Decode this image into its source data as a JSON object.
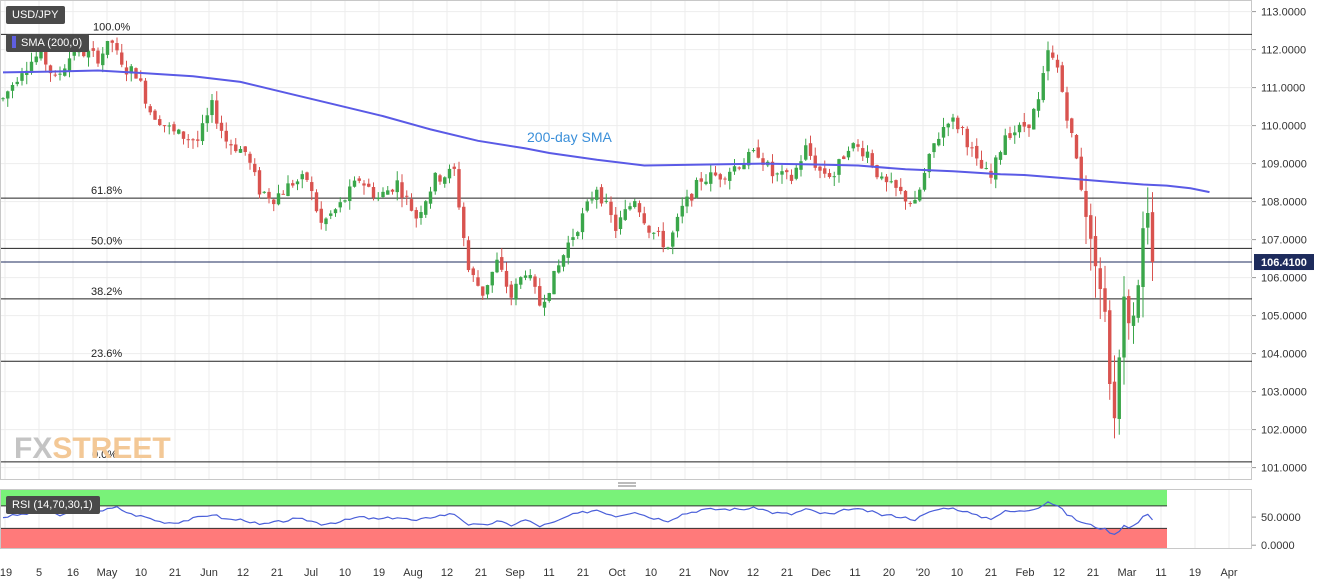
{
  "header": {
    "symbol": "USD/JPY",
    "sma_label": "SMA (200,0)",
    "rsi_label": "RSI (14,70,30,1)"
  },
  "watermark": {
    "text_fx": "FX",
    "text_street": "STREET"
  },
  "colors": {
    "bull": "#3aa64a",
    "bear": "#d9534f",
    "sma": "#5a5ae6",
    "rsi": "#4a5fd9",
    "overbought": "#79f279",
    "oversold": "#ff7a7a",
    "price_badge": "#1d2b5c"
  },
  "chart_data": [
    {
      "type": "candlestick",
      "title": "USD/JPY",
      "x_tick_labels": [
        "'19",
        "5",
        "16",
        "May",
        "10",
        "21",
        "Jun",
        "12",
        "21",
        "Jul",
        "10",
        "19",
        "Aug",
        "12",
        "21",
        "Sep",
        "11",
        "21",
        "Oct",
        "10",
        "21",
        "Nov",
        "12",
        "21",
        "Dec",
        "11",
        "20",
        "'20",
        "10",
        "21",
        "Feb",
        "12",
        "21",
        "Mar",
        "11",
        "19",
        "Apr"
      ],
      "y_tick_labels": [
        "113.0000",
        "112.0000",
        "111.0000",
        "110.0000",
        "109.0000",
        "108.0000",
        "107.0000",
        "106.0000",
        "105.0000",
        "104.0000",
        "103.0000",
        "102.0000",
        "101.0000"
      ],
      "ylim": [
        100.7,
        113.2
      ],
      "last_price": "106.4100",
      "fib_levels": [
        {
          "label": "100.0%",
          "value": 112.4
        },
        {
          "label": "61.8%",
          "value": 108.09
        },
        {
          "label": "50.0%",
          "value": 106.77
        },
        {
          "label": "38.2%",
          "value": 105.44
        },
        {
          "label": "23.6%",
          "value": 103.8
        },
        {
          "label": "0.0%",
          "value": 101.15
        }
      ],
      "sma_label": "200-day SMA",
      "sma_anchor_index": 36,
      "sma": [
        [
          0,
          111.4
        ],
        [
          10,
          111.42
        ],
        [
          20,
          111.45
        ],
        [
          30,
          111.38
        ],
        [
          40,
          111.3
        ],
        [
          50,
          111.15
        ],
        [
          60,
          110.85
        ],
        [
          70,
          110.55
        ],
        [
          80,
          110.25
        ],
        [
          90,
          109.9
        ],
        [
          100,
          109.6
        ],
        [
          110,
          109.4
        ],
        [
          115,
          109.28
        ],
        [
          125,
          109.1
        ],
        [
          135,
          108.95
        ],
        [
          150,
          108.98
        ],
        [
          160,
          109.0
        ],
        [
          170,
          108.98
        ],
        [
          180,
          108.95
        ],
        [
          190,
          108.85
        ],
        [
          200,
          108.8
        ],
        [
          210,
          108.72
        ],
        [
          215,
          108.7
        ],
        [
          225,
          108.6
        ],
        [
          235,
          108.5
        ],
        [
          240,
          108.45
        ],
        [
          245,
          108.42
        ],
        [
          250,
          108.35
        ],
        [
          254,
          108.25
        ]
      ],
      "price_anchors": [
        [
          0,
          110.7
        ],
        [
          4,
          111.5
        ],
        [
          8,
          111.9
        ],
        [
          11,
          111.2
        ],
        [
          15,
          112.0
        ],
        [
          20,
          111.8
        ],
        [
          23,
          112.2
        ],
        [
          25,
          111.5
        ],
        [
          28,
          111.4
        ],
        [
          31,
          110.4
        ],
        [
          36,
          109.8
        ],
        [
          41,
          109.6
        ],
        [
          44,
          110.5
        ],
        [
          47,
          109.6
        ],
        [
          51,
          109.3
        ],
        [
          54,
          108.3
        ],
        [
          57,
          108.1
        ],
        [
          61,
          108.5
        ],
        [
          64,
          108.6
        ],
        [
          67,
          107.4
        ],
        [
          71,
          107.9
        ],
        [
          75,
          108.6
        ],
        [
          79,
          108.1
        ],
        [
          83,
          108.5
        ],
        [
          87,
          107.6
        ],
        [
          91,
          108.6
        ],
        [
          95,
          108.8
        ],
        [
          98,
          106.2
        ],
        [
          101,
          105.6
        ],
        [
          104,
          106.4
        ],
        [
          107,
          105.5
        ],
        [
          110,
          106.2
        ],
        [
          113,
          105.3
        ],
        [
          116,
          106.0
        ],
        [
          119,
          106.9
        ],
        [
          122,
          107.6
        ],
        [
          125,
          108.4
        ],
        [
          129,
          107.3
        ],
        [
          133,
          108.1
        ],
        [
          136,
          107.3
        ],
        [
          140,
          106.8
        ],
        [
          143,
          107.8
        ],
        [
          147,
          108.6
        ],
        [
          151,
          108.7
        ],
        [
          155,
          109.0
        ],
        [
          159,
          109.3
        ],
        [
          162,
          108.7
        ],
        [
          166,
          108.6
        ],
        [
          169,
          109.4
        ],
        [
          172,
          108.8
        ],
        [
          175,
          108.7
        ],
        [
          178,
          109.5
        ],
        [
          182,
          109.3
        ],
        [
          185,
          108.5
        ],
        [
          188,
          108.3
        ],
        [
          192,
          107.9
        ],
        [
          196,
          109.5
        ],
        [
          199,
          110.2
        ],
        [
          202,
          109.9
        ],
        [
          205,
          109.0
        ],
        [
          208,
          108.6
        ],
        [
          211,
          109.8
        ],
        [
          214,
          109.9
        ],
        [
          216,
          110.1
        ],
        [
          218,
          110.6
        ],
        [
          220,
          111.9
        ],
        [
          222,
          111.5
        ],
        [
          224,
          110.3
        ],
        [
          226,
          109.1
        ],
        [
          228,
          107.7
        ],
        [
          230,
          106.3
        ],
        [
          232,
          105.1
        ],
        [
          233,
          103.2
        ],
        [
          234,
          102.3
        ],
        [
          236,
          105.5
        ],
        [
          237,
          104.8
        ],
        [
          238,
          105.0
        ],
        [
          239,
          105.8
        ],
        [
          240,
          107.3
        ],
        [
          241,
          107.7
        ],
        [
          242,
          106.41
        ]
      ],
      "rsi": {
        "label": "RSI (14,70,30,1)",
        "y_tick_labels": [
          "50.0000",
          "0.0000"
        ],
        "ylim": [
          -5,
          100
        ],
        "overbought": 70,
        "oversold": 30,
        "anchors": [
          [
            0,
            50
          ],
          [
            5,
            56
          ],
          [
            9,
            60
          ],
          [
            12,
            53
          ],
          [
            16,
            62
          ],
          [
            21,
            62
          ],
          [
            24,
            67
          ],
          [
            27,
            55
          ],
          [
            30,
            50
          ],
          [
            33,
            42
          ],
          [
            36,
            40
          ],
          [
            40,
            47
          ],
          [
            44,
            55
          ],
          [
            47,
            46
          ],
          [
            51,
            45
          ],
          [
            54,
            36
          ],
          [
            57,
            40
          ],
          [
            61,
            46
          ],
          [
            64,
            45
          ],
          [
            67,
            38
          ],
          [
            71,
            42
          ],
          [
            75,
            50
          ],
          [
            79,
            46
          ],
          [
            83,
            50
          ],
          [
            87,
            43
          ],
          [
            91,
            52
          ],
          [
            95,
            56
          ],
          [
            98,
            37
          ],
          [
            101,
            35
          ],
          [
            104,
            42
          ],
          [
            107,
            36
          ],
          [
            110,
            45
          ],
          [
            113,
            34
          ],
          [
            116,
            40
          ],
          [
            119,
            52
          ],
          [
            122,
            58
          ],
          [
            125,
            63
          ],
          [
            129,
            52
          ],
          [
            133,
            60
          ],
          [
            136,
            50
          ],
          [
            140,
            44
          ],
          [
            143,
            55
          ],
          [
            147,
            63
          ],
          [
            151,
            64
          ],
          [
            155,
            64
          ],
          [
            159,
            66
          ],
          [
            162,
            58
          ],
          [
            166,
            55
          ],
          [
            169,
            64
          ],
          [
            172,
            57
          ],
          [
            175,
            55
          ],
          [
            178,
            65
          ],
          [
            182,
            61
          ],
          [
            185,
            54
          ],
          [
            188,
            52
          ],
          [
            192,
            46
          ],
          [
            196,
            62
          ],
          [
            199,
            67
          ],
          [
            202,
            62
          ],
          [
            205,
            52
          ],
          [
            208,
            48
          ],
          [
            211,
            60
          ],
          [
            214,
            60
          ],
          [
            216,
            63
          ],
          [
            218,
            68
          ],
          [
            220,
            78
          ],
          [
            222,
            70
          ],
          [
            224,
            55
          ],
          [
            226,
            45
          ],
          [
            228,
            38
          ],
          [
            230,
            33
          ],
          [
            232,
            28
          ],
          [
            233,
            24
          ],
          [
            234,
            18
          ],
          [
            236,
            36
          ],
          [
            237,
            33
          ],
          [
            238,
            35
          ],
          [
            239,
            40
          ],
          [
            240,
            52
          ],
          [
            241,
            53
          ],
          [
            242,
            47
          ]
        ]
      }
    }
  ]
}
